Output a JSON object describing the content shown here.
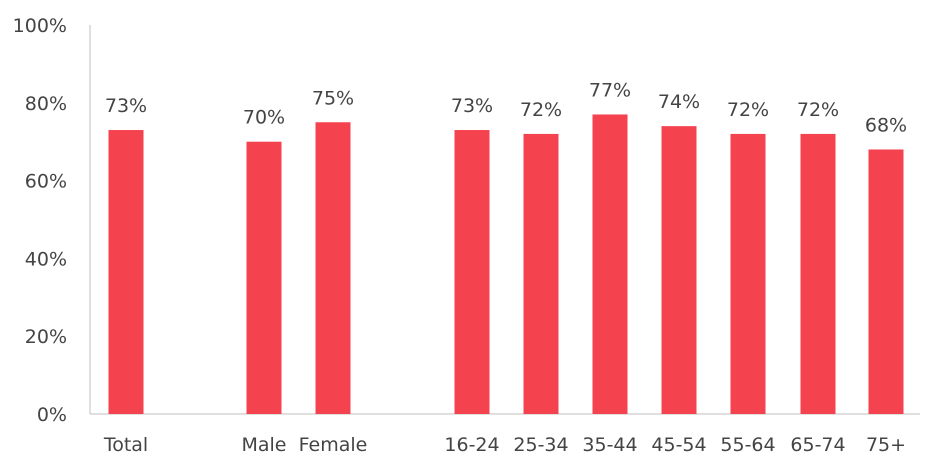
{
  "chart_data": {
    "type": "bar",
    "title": "",
    "xlabel": "",
    "ylabel": "",
    "ylim": [
      0,
      100
    ],
    "y_ticks": [
      0,
      20,
      40,
      60,
      80,
      100
    ],
    "y_tick_suffix": "%",
    "grid": false,
    "legend": "none",
    "bar_color": "#F5424F",
    "axis_color": "#BFBFBF",
    "categories": [
      "Total",
      "Male",
      "Female",
      "16-24",
      "25-34",
      "35-44",
      "45-54",
      "55-64",
      "65-74",
      "75+"
    ],
    "values": [
      73,
      70,
      75,
      73,
      72,
      77,
      74,
      72,
      72,
      68
    ],
    "data_labels": [
      "73%",
      "70%",
      "75%",
      "73%",
      "72%",
      "77%",
      "74%",
      "72%",
      "72%",
      "68%"
    ],
    "groups": [
      {
        "members": [
          "Total"
        ]
      },
      {
        "members": [
          "Male",
          "Female"
        ]
      },
      {
        "members": [
          "16-24",
          "25-34",
          "35-44",
          "45-54",
          "55-64",
          "65-74",
          "75+"
        ]
      }
    ]
  }
}
